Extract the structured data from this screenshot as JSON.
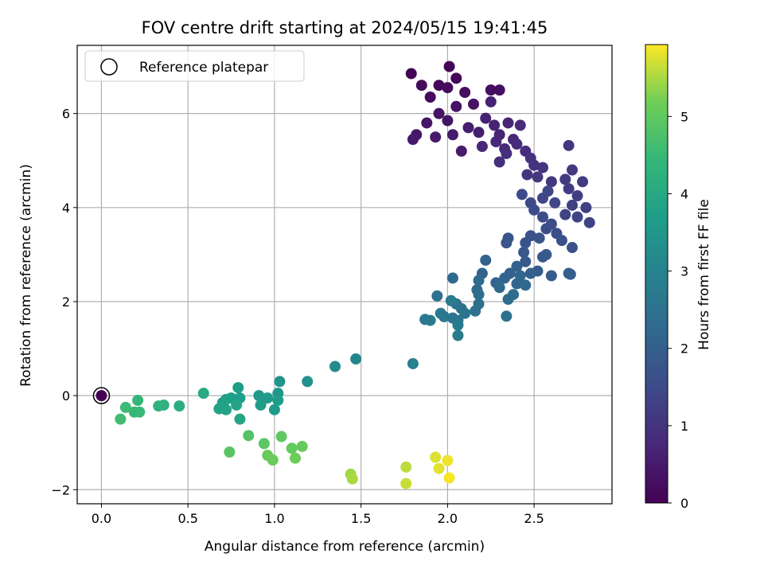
{
  "chart_data": {
    "type": "scatter",
    "title": "FOV centre drift starting at 2024/05/15 19:41:45",
    "xlabel": "Angular distance from reference (arcmin)",
    "ylabel": "Rotation from reference (arcmin)",
    "xlim": [
      -0.14,
      2.95
    ],
    "ylim": [
      -2.3,
      7.45
    ],
    "xticks": [
      0.0,
      0.5,
      1.0,
      1.5,
      2.0,
      2.5
    ],
    "xtick_labels": [
      "0.0",
      "0.5",
      "1.0",
      "1.5",
      "2.0",
      "2.5"
    ],
    "yticks": [
      -2,
      0,
      2,
      4,
      6
    ],
    "ytick_labels": [
      "−2",
      "0",
      "2",
      "4",
      "6"
    ],
    "grid": true,
    "legend": {
      "position": "top-left",
      "entries": [
        "Reference platepar"
      ]
    },
    "reference_point": {
      "x": 0.0,
      "y": 0.0
    },
    "colorbar": {
      "label": "Hours from first FF file",
      "colormap": "viridis",
      "range": [
        0,
        5.93
      ],
      "ticks": [
        0,
        1,
        2,
        3,
        4,
        5
      ],
      "tick_labels": [
        "0",
        "1",
        "2",
        "3",
        "4",
        "5"
      ]
    },
    "points": [
      {
        "x": 1.79,
        "y": 6.85,
        "c": 0.05
      },
      {
        "x": 2.01,
        "y": 7.0,
        "c": 0.08
      },
      {
        "x": 2.05,
        "y": 6.75,
        "c": 0.1
      },
      {
        "x": 1.95,
        "y": 6.6,
        "c": 0.12
      },
      {
        "x": 1.85,
        "y": 6.6,
        "c": 0.15
      },
      {
        "x": 1.9,
        "y": 6.35,
        "c": 0.18
      },
      {
        "x": 2.0,
        "y": 6.55,
        "c": 0.2
      },
      {
        "x": 2.1,
        "y": 6.45,
        "c": 0.22
      },
      {
        "x": 2.25,
        "y": 6.5,
        "c": 0.25
      },
      {
        "x": 2.3,
        "y": 6.5,
        "c": 0.27
      },
      {
        "x": 2.15,
        "y": 6.2,
        "c": 0.3
      },
      {
        "x": 2.05,
        "y": 6.15,
        "c": 0.32
      },
      {
        "x": 1.95,
        "y": 6.0,
        "c": 0.35
      },
      {
        "x": 2.0,
        "y": 5.85,
        "c": 0.37
      },
      {
        "x": 1.88,
        "y": 5.8,
        "c": 0.4
      },
      {
        "x": 1.82,
        "y": 5.55,
        "c": 0.42
      },
      {
        "x": 1.8,
        "y": 5.45,
        "c": 0.45
      },
      {
        "x": 1.93,
        "y": 5.5,
        "c": 0.47
      },
      {
        "x": 2.03,
        "y": 5.55,
        "c": 0.5
      },
      {
        "x": 2.08,
        "y": 5.2,
        "c": 0.52
      },
      {
        "x": 2.12,
        "y": 5.7,
        "c": 0.55
      },
      {
        "x": 2.18,
        "y": 5.6,
        "c": 0.57
      },
      {
        "x": 2.22,
        "y": 5.9,
        "c": 0.6
      },
      {
        "x": 2.25,
        "y": 6.25,
        "c": 0.62
      },
      {
        "x": 2.27,
        "y": 5.75,
        "c": 0.65
      },
      {
        "x": 2.3,
        "y": 5.55,
        "c": 0.67
      },
      {
        "x": 2.35,
        "y": 5.8,
        "c": 0.7
      },
      {
        "x": 2.38,
        "y": 5.45,
        "c": 0.72
      },
      {
        "x": 2.2,
        "y": 5.3,
        "c": 0.75
      },
      {
        "x": 2.28,
        "y": 5.4,
        "c": 0.77
      },
      {
        "x": 2.33,
        "y": 5.25,
        "c": 0.8
      },
      {
        "x": 2.42,
        "y": 5.75,
        "c": 0.82
      },
      {
        "x": 2.45,
        "y": 5.2,
        "c": 0.85
      },
      {
        "x": 2.4,
        "y": 5.35,
        "c": 0.87
      },
      {
        "x": 2.34,
        "y": 5.15,
        "c": 0.9
      },
      {
        "x": 2.3,
        "y": 4.97,
        "c": 0.92
      },
      {
        "x": 2.48,
        "y": 5.05,
        "c": 0.95
      },
      {
        "x": 2.5,
        "y": 4.9,
        "c": 0.97
      },
      {
        "x": 2.55,
        "y": 4.85,
        "c": 1.0
      },
      {
        "x": 2.46,
        "y": 4.7,
        "c": 1.02
      },
      {
        "x": 2.52,
        "y": 4.65,
        "c": 1.05
      },
      {
        "x": 2.6,
        "y": 4.55,
        "c": 1.07
      },
      {
        "x": 2.7,
        "y": 5.32,
        "c": 1.1
      },
      {
        "x": 2.72,
        "y": 4.8,
        "c": 1.12
      },
      {
        "x": 2.68,
        "y": 4.6,
        "c": 1.15
      },
      {
        "x": 2.78,
        "y": 4.55,
        "c": 1.17
      },
      {
        "x": 2.7,
        "y": 4.4,
        "c": 1.2
      },
      {
        "x": 2.75,
        "y": 4.25,
        "c": 1.22
      },
      {
        "x": 2.8,
        "y": 4.0,
        "c": 1.25
      },
      {
        "x": 2.72,
        "y": 4.05,
        "c": 1.27
      },
      {
        "x": 2.68,
        "y": 3.85,
        "c": 1.3
      },
      {
        "x": 2.82,
        "y": 3.68,
        "c": 1.32
      },
      {
        "x": 2.75,
        "y": 3.8,
        "c": 1.35
      },
      {
        "x": 2.62,
        "y": 4.1,
        "c": 1.37
      },
      {
        "x": 2.58,
        "y": 4.35,
        "c": 1.4
      },
      {
        "x": 2.55,
        "y": 4.2,
        "c": 1.42
      },
      {
        "x": 2.48,
        "y": 4.1,
        "c": 1.45
      },
      {
        "x": 2.43,
        "y": 4.28,
        "c": 1.47
      },
      {
        "x": 2.5,
        "y": 3.95,
        "c": 1.5
      },
      {
        "x": 2.55,
        "y": 3.8,
        "c": 1.52
      },
      {
        "x": 2.6,
        "y": 3.65,
        "c": 1.55
      },
      {
        "x": 2.57,
        "y": 3.55,
        "c": 1.57
      },
      {
        "x": 2.63,
        "y": 3.45,
        "c": 1.6
      },
      {
        "x": 2.66,
        "y": 3.3,
        "c": 1.62
      },
      {
        "x": 2.72,
        "y": 3.15,
        "c": 1.65
      },
      {
        "x": 2.48,
        "y": 3.4,
        "c": 1.67
      },
      {
        "x": 2.53,
        "y": 3.35,
        "c": 1.7
      },
      {
        "x": 2.45,
        "y": 3.25,
        "c": 1.72
      },
      {
        "x": 2.35,
        "y": 3.35,
        "c": 1.75
      },
      {
        "x": 2.34,
        "y": 3.25,
        "c": 1.77
      },
      {
        "x": 2.44,
        "y": 3.05,
        "c": 1.8
      },
      {
        "x": 2.55,
        "y": 2.95,
        "c": 1.82
      },
      {
        "x": 2.57,
        "y": 3.0,
        "c": 1.85
      },
      {
        "x": 2.45,
        "y": 2.85,
        "c": 1.87
      },
      {
        "x": 2.52,
        "y": 2.65,
        "c": 1.9
      },
      {
        "x": 2.6,
        "y": 2.55,
        "c": 1.92
      },
      {
        "x": 2.7,
        "y": 2.6,
        "c": 1.95
      },
      {
        "x": 2.71,
        "y": 2.58,
        "c": 1.97
      },
      {
        "x": 2.48,
        "y": 2.6,
        "c": 2.0
      },
      {
        "x": 2.4,
        "y": 2.75,
        "c": 2.02
      },
      {
        "x": 2.36,
        "y": 2.6,
        "c": 2.05
      },
      {
        "x": 2.22,
        "y": 2.88,
        "c": 2.07
      },
      {
        "x": 2.2,
        "y": 2.6,
        "c": 2.1
      },
      {
        "x": 2.28,
        "y": 2.4,
        "c": 2.12
      },
      {
        "x": 2.33,
        "y": 2.5,
        "c": 2.15
      },
      {
        "x": 2.42,
        "y": 2.55,
        "c": 2.17
      },
      {
        "x": 2.4,
        "y": 2.38,
        "c": 2.2
      },
      {
        "x": 2.45,
        "y": 2.35,
        "c": 2.22
      },
      {
        "x": 2.3,
        "y": 2.3,
        "c": 2.25
      },
      {
        "x": 2.03,
        "y": 2.5,
        "c": 2.27
      },
      {
        "x": 2.18,
        "y": 2.45,
        "c": 2.3
      },
      {
        "x": 2.17,
        "y": 2.25,
        "c": 2.32
      },
      {
        "x": 2.38,
        "y": 2.15,
        "c": 2.35
      },
      {
        "x": 2.35,
        "y": 2.05,
        "c": 2.37
      },
      {
        "x": 2.18,
        "y": 2.15,
        "c": 2.4
      },
      {
        "x": 2.18,
        "y": 1.95,
        "c": 2.42
      },
      {
        "x": 2.16,
        "y": 1.8,
        "c": 2.45
      },
      {
        "x": 2.34,
        "y": 1.69,
        "c": 2.47
      },
      {
        "x": 1.94,
        "y": 2.12,
        "c": 2.5
      },
      {
        "x": 2.05,
        "y": 1.95,
        "c": 2.52
      },
      {
        "x": 2.08,
        "y": 1.85,
        "c": 2.55
      },
      {
        "x": 2.1,
        "y": 1.75,
        "c": 2.57
      },
      {
        "x": 2.06,
        "y": 1.6,
        "c": 2.6
      },
      {
        "x": 2.03,
        "y": 1.65,
        "c": 2.62
      },
      {
        "x": 1.96,
        "y": 1.75,
        "c": 2.65
      },
      {
        "x": 1.98,
        "y": 1.68,
        "c": 2.67
      },
      {
        "x": 1.9,
        "y": 1.6,
        "c": 2.7
      },
      {
        "x": 1.87,
        "y": 1.62,
        "c": 2.72
      },
      {
        "x": 2.06,
        "y": 1.5,
        "c": 2.75
      },
      {
        "x": 2.06,
        "y": 1.28,
        "c": 2.77
      },
      {
        "x": 2.02,
        "y": 2.02,
        "c": 2.8
      },
      {
        "x": 1.8,
        "y": 0.68,
        "c": 2.9
      },
      {
        "x": 1.47,
        "y": 0.78,
        "c": 3.05
      },
      {
        "x": 1.35,
        "y": 0.62,
        "c": 3.2
      },
      {
        "x": 1.19,
        "y": 0.3,
        "c": 3.35
      },
      {
        "x": 1.03,
        "y": 0.3,
        "c": 3.45
      },
      {
        "x": 1.02,
        "y": 0.05,
        "c": 3.5
      },
      {
        "x": 0.91,
        "y": 0.0,
        "c": 3.55
      },
      {
        "x": 0.96,
        "y": -0.05,
        "c": 3.6
      },
      {
        "x": 1.0,
        "y": -0.3,
        "c": 3.62
      },
      {
        "x": 0.92,
        "y": -0.2,
        "c": 3.65
      },
      {
        "x": 1.02,
        "y": -0.1,
        "c": 3.67
      },
      {
        "x": 0.79,
        "y": 0.17,
        "c": 3.7
      },
      {
        "x": 0.8,
        "y": -0.05,
        "c": 3.72
      },
      {
        "x": 0.75,
        "y": -0.05,
        "c": 3.75
      },
      {
        "x": 0.72,
        "y": -0.08,
        "c": 3.77
      },
      {
        "x": 0.7,
        "y": -0.15,
        "c": 3.8
      },
      {
        "x": 0.68,
        "y": -0.28,
        "c": 3.82
      },
      {
        "x": 0.72,
        "y": -0.3,
        "c": 3.85
      },
      {
        "x": 0.78,
        "y": -0.2,
        "c": 3.87
      },
      {
        "x": 0.8,
        "y": -0.5,
        "c": 3.9
      },
      {
        "x": 0.59,
        "y": 0.05,
        "c": 4.0
      },
      {
        "x": 0.45,
        "y": -0.22,
        "c": 4.15
      },
      {
        "x": 0.36,
        "y": -0.2,
        "c": 4.25
      },
      {
        "x": 0.33,
        "y": -0.22,
        "c": 4.3
      },
      {
        "x": 0.21,
        "y": -0.1,
        "c": 4.4
      },
      {
        "x": 0.19,
        "y": -0.35,
        "c": 4.45
      },
      {
        "x": 0.22,
        "y": -0.35,
        "c": 4.48
      },
      {
        "x": 0.14,
        "y": -0.25,
        "c": 4.55
      },
      {
        "x": 0.11,
        "y": -0.5,
        "c": 4.6
      },
      {
        "x": 0.85,
        "y": -0.85,
        "c": 4.85
      },
      {
        "x": 0.74,
        "y": -1.2,
        "c": 4.9
      },
      {
        "x": 0.94,
        "y": -1.02,
        "c": 4.95
      },
      {
        "x": 1.04,
        "y": -0.87,
        "c": 5.0
      },
      {
        "x": 1.1,
        "y": -1.12,
        "c": 5.05
      },
      {
        "x": 1.16,
        "y": -1.08,
        "c": 5.08
      },
      {
        "x": 0.96,
        "y": -1.27,
        "c": 5.1
      },
      {
        "x": 0.99,
        "y": -1.37,
        "c": 5.12
      },
      {
        "x": 1.12,
        "y": -1.33,
        "c": 5.15
      },
      {
        "x": 1.44,
        "y": -1.67,
        "c": 5.45
      },
      {
        "x": 1.45,
        "y": -1.77,
        "c": 5.5
      },
      {
        "x": 1.76,
        "y": -1.52,
        "c": 5.6
      },
      {
        "x": 1.76,
        "y": -1.87,
        "c": 5.65
      },
      {
        "x": 1.93,
        "y": -1.31,
        "c": 5.75
      },
      {
        "x": 1.95,
        "y": -1.55,
        "c": 5.8
      },
      {
        "x": 2.0,
        "y": -1.38,
        "c": 5.85
      },
      {
        "x": 2.01,
        "y": -1.75,
        "c": 5.9
      },
      {
        "x": 0.0,
        "y": 0.0,
        "c": 0.0
      }
    ]
  }
}
